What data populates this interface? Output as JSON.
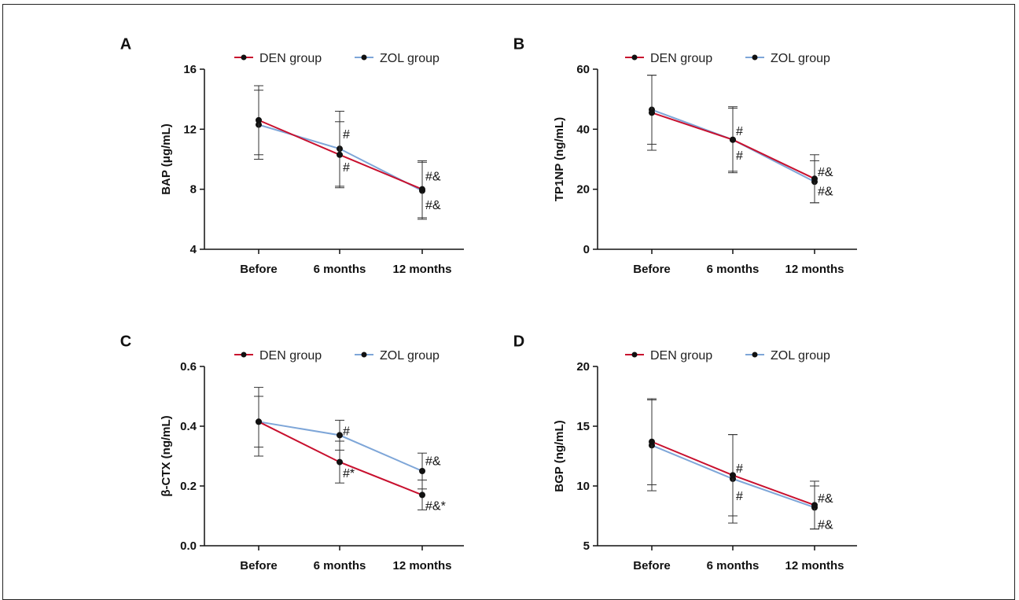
{
  "chart_data": [
    {
      "panel": "A",
      "type": "line",
      "categories": [
        "Before",
        "6 months",
        "12 months"
      ],
      "ylabel": "BAP (μg/mL)",
      "ylim": [
        4,
        16
      ],
      "yticks": [
        4,
        8,
        12,
        16
      ],
      "series": [
        {
          "name": "DEN group",
          "values": [
            12.6,
            10.3,
            8.0
          ],
          "errors": [
            2.3,
            2.2,
            1.9
          ]
        },
        {
          "name": "ZOL group",
          "values": [
            12.3,
            10.7,
            7.9
          ],
          "errors": [
            2.3,
            2.5,
            1.9
          ]
        }
      ],
      "annotations": [
        {
          "text": "#",
          "category": 1,
          "y": 11.7
        },
        {
          "text": "#",
          "category": 1,
          "y": 9.5
        },
        {
          "text": "#&",
          "category": 2,
          "y": 8.9
        },
        {
          "text": "#&",
          "category": 2,
          "y": 7.0
        }
      ]
    },
    {
      "panel": "B",
      "type": "line",
      "categories": [
        "Before",
        "6 months",
        "12 months"
      ],
      "ylabel": "TP1NP (ng/mL)",
      "ylim": [
        0,
        60
      ],
      "yticks": [
        0,
        20,
        40,
        60
      ],
      "series": [
        {
          "name": "DEN group",
          "values": [
            45.5,
            36.5,
            23.5
          ],
          "errors": [
            12.5,
            10.5,
            8.0
          ]
        },
        {
          "name": "ZOL group",
          "values": [
            46.5,
            36.5,
            22.5
          ],
          "errors": [
            11.5,
            11.0,
            7.0
          ]
        }
      ],
      "annotations": [
        {
          "text": "#",
          "category": 1,
          "y": 39.5
        },
        {
          "text": "#",
          "category": 1,
          "y": 31.5
        },
        {
          "text": "#&",
          "category": 2,
          "y": 26.0
        },
        {
          "text": "#&",
          "category": 2,
          "y": 19.5
        }
      ]
    },
    {
      "panel": "C",
      "type": "line",
      "categories": [
        "Before",
        "6 months",
        "12 months"
      ],
      "ylabel": "β-CTX (ng/mL)",
      "ylim": [
        0.0,
        0.6
      ],
      "yticks": [
        0.0,
        0.2,
        0.4,
        0.6
      ],
      "series": [
        {
          "name": "DEN group",
          "values": [
            0.415,
            0.28,
            0.17
          ],
          "errors": [
            0.115,
            0.07,
            0.05
          ]
        },
        {
          "name": "ZOL group",
          "values": [
            0.415,
            0.37,
            0.25
          ],
          "errors": [
            0.085,
            0.05,
            0.06
          ]
        }
      ],
      "annotations": [
        {
          "text": "#",
          "category": 1,
          "y": 0.385
        },
        {
          "text": "#*",
          "category": 1,
          "y": 0.245
        },
        {
          "text": "#&",
          "category": 2,
          "y": 0.285
        },
        {
          "text": "#&*",
          "category": 2,
          "y": 0.135
        }
      ]
    },
    {
      "panel": "D",
      "type": "line",
      "categories": [
        "Before",
        "6 months",
        "12 months"
      ],
      "ylabel": "BGP (ng/mL)",
      "ylim": [
        5,
        20
      ],
      "yticks": [
        5,
        10,
        15,
        20
      ],
      "series": [
        {
          "name": "DEN group",
          "values": [
            13.7,
            10.9,
            8.4
          ],
          "errors": [
            3.6,
            3.4,
            2.0
          ]
        },
        {
          "name": "ZOL group",
          "values": [
            13.4,
            10.6,
            8.2
          ],
          "errors": [
            3.8,
            3.7,
            1.8
          ]
        }
      ],
      "annotations": [
        {
          "text": "#",
          "category": 1,
          "y": 11.5
        },
        {
          "text": "#",
          "category": 1,
          "y": 9.2
        },
        {
          "text": "#&",
          "category": 2,
          "y": 9.0
        },
        {
          "text": "#&",
          "category": 2,
          "y": 6.8
        }
      ]
    }
  ],
  "colors": {
    "den": "#c8102e",
    "zol": "#7ea6d8",
    "marker": "#111111",
    "axis": "#111111"
  }
}
